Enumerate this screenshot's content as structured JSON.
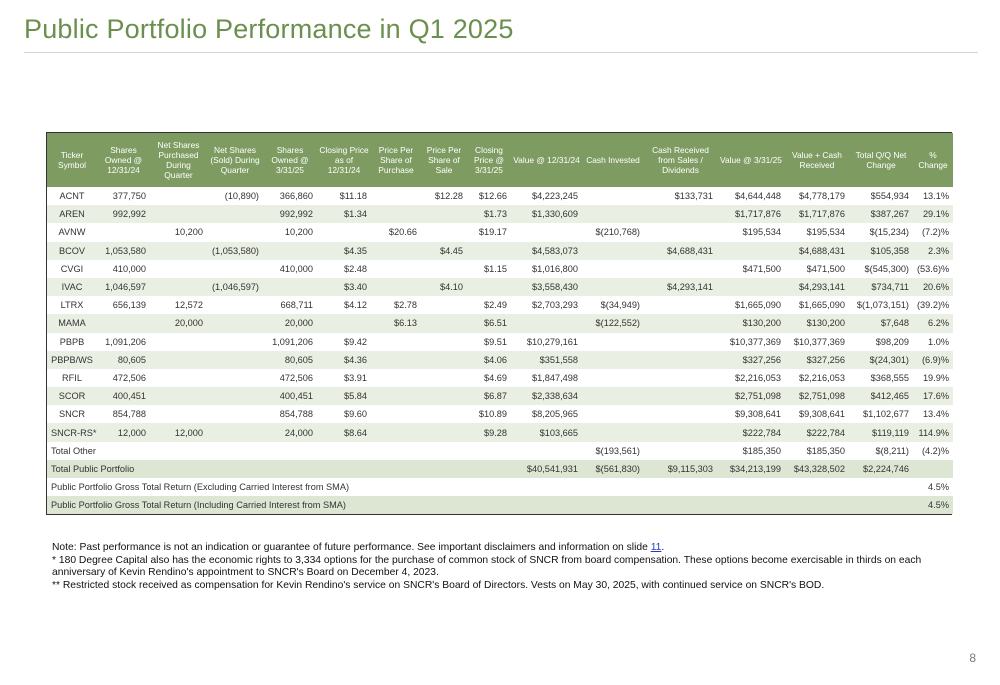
{
  "title": "Public Portfolio Performance in Q1 2025",
  "table": {
    "headers": [
      "Ticker Symbol",
      "Shares Owned @ 12/31/24",
      "Net Shares Purchased During Quarter",
      "Net Shares (Sold) During Quarter",
      "Shares Owned @ 3/31/25",
      "Closing Price as of 12/31/24",
      "Price Per Share of Purchase",
      "Price Per Share of Sale",
      "Closing Price @ 3/31/25",
      "Value @ 12/31/24",
      "Cash Invested",
      "Cash Received from Sales / Dividends",
      "Value @ 3/31/25",
      "Value + Cash Received",
      "Total Q/Q Net Change",
      "% Change"
    ],
    "rows": [
      [
        "ACNT",
        "377,750",
        "",
        "(10,890)",
        "366,860",
        "$11.18",
        "",
        "$12.28",
        "$12.66",
        "$4,223,245",
        "",
        "$133,731",
        "$4,644,448",
        "$4,778,179",
        "$554,934",
        "13.1%"
      ],
      [
        "AREN",
        "992,992",
        "",
        "",
        "992,992",
        "$1.34",
        "",
        "",
        "$1.73",
        "$1,330,609",
        "",
        "",
        "$1,717,876",
        "$1,717,876",
        "$387,267",
        "29.1%"
      ],
      [
        "AVNW",
        "",
        "10,200",
        "",
        "10,200",
        "",
        "$20.66",
        "",
        "$19.17",
        "",
        "$(210,768)",
        "",
        "$195,534",
        "$195,534",
        "$(15,234)",
        "(7.2)%"
      ],
      [
        "BCOV",
        "1,053,580",
        "",
        "(1,053,580)",
        "",
        "$4.35",
        "",
        "$4.45",
        "",
        "$4,583,073",
        "",
        "$4,688,431",
        "",
        "$4,688,431",
        "$105,358",
        "2.3%"
      ],
      [
        "CVGI",
        "410,000",
        "",
        "",
        "410,000",
        "$2.48",
        "",
        "",
        "$1.15",
        "$1,016,800",
        "",
        "",
        "$471,500",
        "$471,500",
        "$(545,300)",
        "(53.6)%"
      ],
      [
        "IVAC",
        "1,046,597",
        "",
        "(1,046,597)",
        "",
        "$3.40",
        "",
        "$4.10",
        "",
        "$3,558,430",
        "",
        "$4,293,141",
        "",
        "$4,293,141",
        "$734,711",
        "20.6%"
      ],
      [
        "LTRX",
        "656,139",
        "12,572",
        "",
        "668,711",
        "$4.12",
        "$2.78",
        "",
        "$2.49",
        "$2,703,293",
        "$(34,949)",
        "",
        "$1,665,090",
        "$1,665,090",
        "$(1,073,151)",
        "(39.2)%"
      ],
      [
        "MAMA",
        "",
        "20,000",
        "",
        "20,000",
        "",
        "$6.13",
        "",
        "$6.51",
        "",
        "$(122,552)",
        "",
        "$130,200",
        "$130,200",
        "$7,648",
        "6.2%"
      ],
      [
        "PBPB",
        "1,091,206",
        "",
        "",
        "1,091,206",
        "$9.42",
        "",
        "",
        "$9.51",
        "$10,279,161",
        "",
        "",
        "$10,377,369",
        "$10,377,369",
        "$98,209",
        "1.0%"
      ],
      [
        "PBPB/WS",
        "80,605",
        "",
        "",
        "80,605",
        "$4.36",
        "",
        "",
        "$4.06",
        "$351,558",
        "",
        "",
        "$327,256",
        "$327,256",
        "$(24,301)",
        "(6.9)%"
      ],
      [
        "RFIL",
        "472,506",
        "",
        "",
        "472,506",
        "$3.91",
        "",
        "",
        "$4.69",
        "$1,847,498",
        "",
        "",
        "$2,216,053",
        "$2,216,053",
        "$368,555",
        "19.9%"
      ],
      [
        "SCOR",
        "400,451",
        "",
        "",
        "400,451",
        "$5.84",
        "",
        "",
        "$6.87",
        "$2,338,634",
        "",
        "",
        "$2,751,098",
        "$2,751,098",
        "$412,465",
        "17.6%"
      ],
      [
        "SNCR",
        "854,788",
        "",
        "",
        "854,788",
        "$9.60",
        "",
        "",
        "$10.89",
        "$8,205,965",
        "",
        "",
        "$9,308,641",
        "$9,308,641",
        "$1,102,677",
        "13.4%"
      ],
      [
        "SNCR-RS*",
        "12,000",
        "12,000",
        "",
        "24,000",
        "$8.64",
        "",
        "",
        "$9.28",
        "$103,665",
        "",
        "",
        "$222,784",
        "$222,784",
        "$119,119",
        "114.9%"
      ]
    ],
    "total_other": {
      "label": "Total Other",
      "cash_invested": "$(193,561)",
      "value_3_31": "$185,350",
      "value_plus_cash": "$185,350",
      "net_change": "$(8,211)",
      "pct": "(4.2)%"
    },
    "total_public": {
      "label": "Total Public Portfolio",
      "value_12_31": "$40,541,931",
      "cash_invested": "$(561,830)",
      "cash_received": "$9,115,303",
      "value_3_31": "$34,213,199",
      "value_plus_cash": "$43,328,502",
      "net_change": "$2,224,746",
      "pct": ""
    },
    "gross_excl": {
      "label": "Public Portfolio Gross Total Return (Excluding Carried Interest from SMA)",
      "pct": "4.5%"
    },
    "gross_incl": {
      "label": "Public Portfolio Gross Total Return (Including Carried Interest from SMA)",
      "pct": "4.5%"
    }
  },
  "notes": {
    "note1_prefix": "Note: Past performance is not an indication or guarantee of future performance.  See important disclaimers and information on slide ",
    "note1_link": "11",
    "note1_suffix": ".",
    "note2": "* 180 Degree Capital also has the economic rights to 3,334 options for the purchase of common stock of SNCR from board compensation.  These options become exercisable in thirds on each anniversary of Kevin Rendino's appointment to SNCR's Board on December 4, 2023.",
    "note3": "** Restricted stock received as compensation for Kevin Rendino's service on SNCR's Board of Directors.  Vests on May 30, 2025, with continued service on SNCR's BOD."
  },
  "page_number": "8"
}
